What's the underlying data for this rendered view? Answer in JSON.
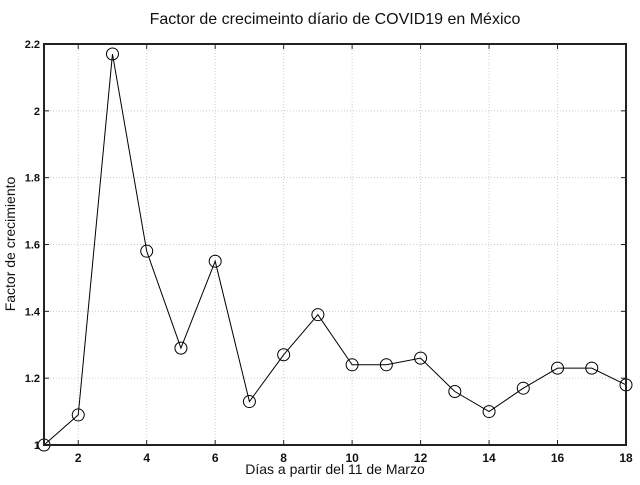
{
  "chart_data": {
    "type": "line",
    "title": "Factor de crecimeinto díario de COVID19 en México",
    "xlabel": "Días a partir del 11 de Marzo",
    "ylabel": "Factor de crecimiento",
    "xlim": [
      1,
      18
    ],
    "ylim": [
      1,
      2.2
    ],
    "xticks": [
      2,
      4,
      6,
      8,
      10,
      12,
      14,
      16,
      18
    ],
    "yticks": [
      1,
      1.2,
      1.4,
      1.6,
      1.8,
      2,
      2.2
    ],
    "ytick_labels": [
      "1",
      "1.2",
      "1.4",
      "1.6",
      "1.8",
      "2",
      "2.2"
    ],
    "grid": true,
    "marker": "open-circle",
    "line_color": "#000000",
    "x": [
      1,
      2,
      3,
      4,
      5,
      6,
      7,
      8,
      9,
      10,
      11,
      12,
      13,
      14,
      15,
      16,
      17,
      18
    ],
    "y": [
      1.0,
      1.09,
      2.17,
      1.58,
      1.29,
      1.55,
      1.13,
      1.27,
      1.39,
      1.24,
      1.24,
      1.26,
      1.16,
      1.1,
      1.17,
      1.23,
      1.23,
      1.18
    ]
  }
}
